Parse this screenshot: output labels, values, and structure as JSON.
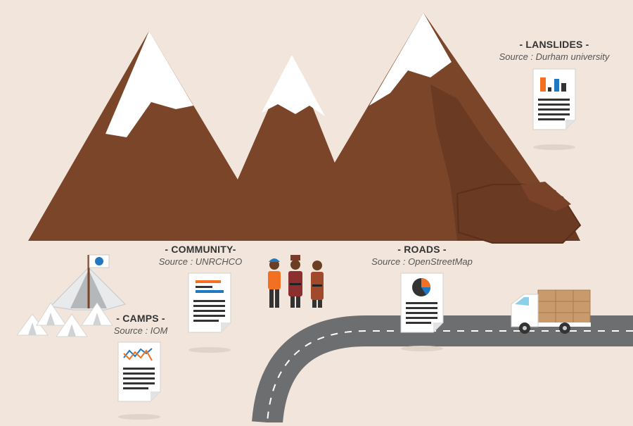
{
  "labels": {
    "landslides": {
      "title": "- LANSLIDES -",
      "source": "Source : Durham university"
    },
    "community": {
      "title": "- COMMUNITY-",
      "source": "Source : UNRCHCO"
    },
    "roads": {
      "title": "- ROADS -",
      "source": "Source : OpenStreetMap"
    },
    "camps": {
      "title": "- CAMPS -",
      "source": "Source : IOM"
    }
  },
  "colors": {
    "background": "#f2e6dc",
    "mountain": "#7b4529",
    "mountain_shadow": "#6a3a22",
    "snow": "#ffffff",
    "road": "#6d6e70",
    "road_marking": "#ffffff",
    "accent_orange": "#f36f21",
    "accent_blue": "#1f78c1"
  },
  "icons": [
    "mountain-range",
    "landslide-rocks",
    "tent-camp",
    "un-flag",
    "people-group",
    "delivery-truck",
    "document-bar-chart",
    "document-line-chart",
    "document-pie-chart",
    "document-list"
  ]
}
